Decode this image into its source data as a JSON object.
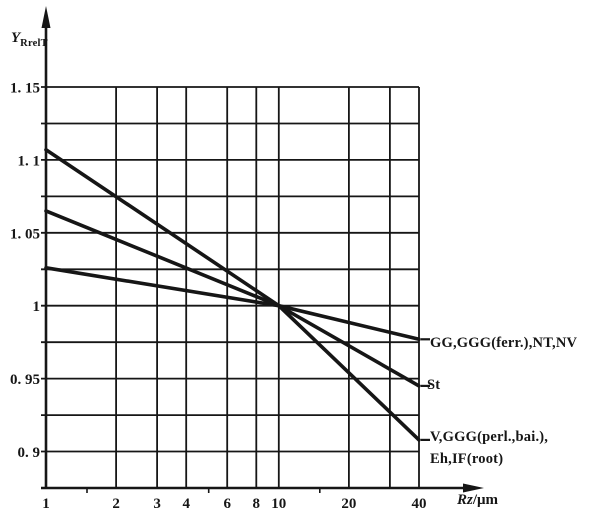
{
  "figure": {
    "background": "#ffffff",
    "ink": "#161616"
  },
  "chart_data": {
    "type": "line",
    "title": "",
    "x_scale": "log",
    "xlabel_main": "Rz",
    "xlabel_unit": "/μm",
    "ylabel_main": "Y",
    "ylabel_sub": "RrelT",
    "xlim": [
      1,
      40
    ],
    "ylim": [
      0.875,
      1.15
    ],
    "grid": true,
    "y_gridline_step": 0.025,
    "x_gridlines": [
      2,
      3,
      4,
      6,
      8,
      10,
      20,
      30,
      40
    ],
    "x_minor_ticks": [
      1.5,
      5,
      15
    ],
    "x_ticks": [
      {
        "value": 1,
        "label": "1"
      },
      {
        "value": 2,
        "label": "2"
      },
      {
        "value": 3,
        "label": "3"
      },
      {
        "value": 4,
        "label": "4"
      },
      {
        "value": 6,
        "label": "6"
      },
      {
        "value": 8,
        "label": "8"
      },
      {
        "value": 10,
        "label": "10"
      },
      {
        "value": 20,
        "label": "20"
      },
      {
        "value": 40,
        "label": "40"
      }
    ],
    "y_ticks": [
      {
        "value": 1.15,
        "label": "1. 15"
      },
      {
        "value": 1.1,
        "label": "1. 1"
      },
      {
        "value": 1.05,
        "label": "1. 05"
      },
      {
        "value": 1.0,
        "label": "1"
      },
      {
        "value": 0.95,
        "label": "0. 95"
      },
      {
        "value": 0.9,
        "label": "0. 9"
      }
    ],
    "crossing_point": [
      10,
      1.0
    ],
    "series": [
      {
        "name": "GG,GGG(ferr.),NT,NV",
        "label_lines": [
          "GG,GGG(ferr.),NT,NV"
        ],
        "points": [
          [
            1,
            1.026
          ],
          [
            10,
            1.0
          ],
          [
            40,
            0.977
          ]
        ]
      },
      {
        "name": "St",
        "label_lines": [
          "St"
        ],
        "points": [
          [
            1,
            1.065
          ],
          [
            10,
            1.0
          ],
          [
            40,
            0.945
          ]
        ]
      },
      {
        "name": "V,GGG(perl.,bai.),Eh,IF(root)",
        "label_lines": [
          "V,GGG(perl.,bai.),",
          "Eh,IF(root)"
        ],
        "points": [
          [
            1,
            1.107
          ],
          [
            10,
            1.0
          ],
          [
            40,
            0.908
          ]
        ]
      }
    ]
  }
}
